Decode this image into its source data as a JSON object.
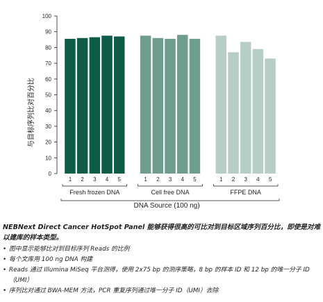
{
  "chart_data": {
    "type": "bar",
    "ylabel": "与目标序列比对百分比",
    "xlabel": "DNA Source (100 ng)",
    "ylim": [
      0,
      100
    ],
    "yticks": [
      0,
      10,
      20,
      30,
      40,
      50,
      60,
      70,
      80,
      90,
      100
    ],
    "grid": false,
    "groups": [
      {
        "name": "Fresh frozen DNA",
        "categories": [
          "1",
          "2",
          "3",
          "4",
          "5"
        ],
        "values": [
          85.5,
          86.0,
          86.5,
          87.5,
          87.0
        ],
        "color": "#0c5c48"
      },
      {
        "name": "Cell free DNA",
        "categories": [
          "1",
          "2",
          "3",
          "4",
          "5"
        ],
        "values": [
          87.5,
          86.0,
          85.5,
          88.0,
          85.5
        ],
        "color": "#6f9d8c"
      },
      {
        "name": "FFPE DNA",
        "categories": [
          "1",
          "2",
          "3",
          "4",
          "5"
        ],
        "values": [
          87.5,
          77.0,
          83.5,
          79.0,
          73.0
        ],
        "color": "#b6cec4"
      }
    ]
  },
  "caption": {
    "headline": "NEBNext Direct Cancer HotSpot Panel 能够获得很高的可比对到目标区域序列百分比，即使是对难以建库的样本类型。",
    "bullet_glyph": "•",
    "bullets": [
      "图中显示能够比对到目标序列 Reads 的比例",
      "每个文库用 100 ng DNA 构建",
      "Reads 通过 Illumina MiSeq 平台测得，使用 2x75 bp 的测序策略，8 bp 的样本 ID 和 12 bp 的唯一分子 ID（UMI）",
      "序列比对通过 BWA-MEM 方法，PCR 重复序列通过唯一分子 ID（UMI）去除"
    ]
  }
}
